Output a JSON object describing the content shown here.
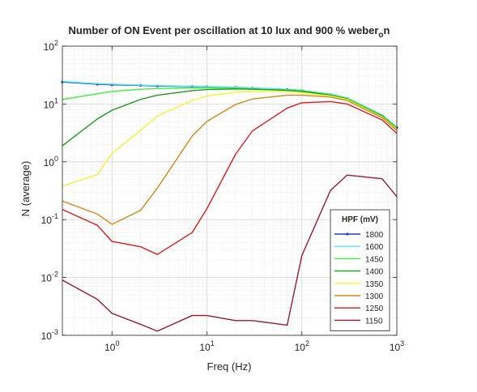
{
  "chart_data": {
    "type": "line",
    "title": "Number of ON Event per oscillation at 10 lux and 900 % weber",
    "title_subscript": "o",
    "title_tail": "n",
    "xlabel": "Freq (Hz)",
    "ylabel": "N (average)",
    "x_scale": "log",
    "y_scale": "log",
    "xlim": [
      0.3,
      1000
    ],
    "ylim": [
      0.001,
      100
    ],
    "x_ticks": [
      {
        "value": 1,
        "base": "10",
        "exp": "0"
      },
      {
        "value": 10,
        "base": "10",
        "exp": "1"
      },
      {
        "value": 100,
        "base": "10",
        "exp": "2"
      },
      {
        "value": 1000,
        "base": "10",
        "exp": "3"
      }
    ],
    "y_ticks": [
      {
        "value": 0.001,
        "base": "10",
        "exp": "-3"
      },
      {
        "value": 0.01,
        "base": "10",
        "exp": "-2"
      },
      {
        "value": 0.1,
        "base": "10",
        "exp": "-1"
      },
      {
        "value": 1,
        "base": "10",
        "exp": "0"
      },
      {
        "value": 10,
        "base": "10",
        "exp": "1"
      },
      {
        "value": 100,
        "base": "10",
        "exp": "2"
      }
    ],
    "grid": true,
    "minor_grid": true,
    "legend": {
      "title": "HPF (mV)",
      "placement": "bottom-right"
    },
    "series": [
      {
        "name": "1800",
        "color": "#1f3fbf",
        "markers": true,
        "x": [
          0.3,
          0.7,
          1,
          2,
          3,
          7,
          10,
          20,
          30,
          70,
          100,
          200,
          300,
          700,
          1000
        ],
        "y": [
          24,
          22,
          21.5,
          21,
          20.5,
          20,
          19.8,
          19.3,
          18.8,
          17.8,
          17,
          14.5,
          12.5,
          6.3,
          3.9
        ]
      },
      {
        "name": "1600",
        "color": "#4fe8ef",
        "markers": false,
        "x": [
          0.3,
          0.7,
          1,
          2,
          3,
          7,
          10,
          20,
          30,
          70,
          100,
          200,
          300,
          700,
          1000
        ],
        "y": [
          24.5,
          22.5,
          22,
          21.2,
          20.8,
          20.2,
          20,
          19.5,
          19,
          18,
          17.2,
          14.8,
          12.8,
          6.5,
          4.0
        ]
      },
      {
        "name": "1450",
        "color": "#3ff03f",
        "markers": false,
        "x": [
          0.3,
          0.7,
          1,
          2,
          3,
          7,
          10,
          20,
          30,
          70,
          100,
          200,
          300,
          700,
          1000
        ],
        "y": [
          12,
          15,
          16.5,
          18,
          18.5,
          19,
          19,
          18.8,
          18.3,
          17.5,
          17,
          14.5,
          12.5,
          6.3,
          3.9
        ]
      },
      {
        "name": "1400",
        "color": "#1f9a1f",
        "markers": false,
        "x": [
          0.3,
          0.7,
          1,
          2,
          3,
          7,
          10,
          20,
          30,
          70,
          100,
          200,
          300,
          700,
          1000
        ],
        "y": [
          1.9,
          5.5,
          7.8,
          12,
          14.2,
          17,
          17.8,
          18.2,
          18,
          17.2,
          16.5,
          14.2,
          12.2,
          6.2,
          3.8
        ]
      },
      {
        "name": "1350",
        "color": "#f5f532",
        "markers": false,
        "x": [
          0.3,
          0.7,
          1,
          2,
          3,
          7,
          10,
          20,
          30,
          70,
          100,
          200,
          300,
          700,
          1000
        ],
        "y": [
          0.38,
          0.6,
          1.4,
          3.5,
          6.2,
          11.5,
          13.8,
          16,
          16.5,
          16.2,
          15.5,
          13.8,
          12,
          6.0,
          3.7
        ]
      },
      {
        "name": "1300",
        "color": "#d4881a",
        "markers": false,
        "x": [
          0.3,
          0.7,
          1,
          2,
          3,
          7,
          10,
          20,
          30,
          70,
          100,
          200,
          300,
          700,
          1000
        ],
        "y": [
          0.21,
          0.125,
          0.083,
          0.145,
          0.35,
          2.8,
          5.0,
          9.8,
          12.2,
          14.2,
          14.2,
          13.2,
          11.5,
          5.8,
          3.5
        ]
      },
      {
        "name": "1250",
        "color": "#e01a1a",
        "markers": false,
        "x": [
          0.3,
          0.7,
          1,
          2,
          3,
          7,
          10,
          20,
          30,
          70,
          100,
          200,
          300,
          700,
          1000
        ],
        "y": [
          0.15,
          0.08,
          0.042,
          0.034,
          0.025,
          0.06,
          0.155,
          1.35,
          3.4,
          8.5,
          10.5,
          11,
          10,
          5.3,
          3.1
        ]
      },
      {
        "name": "1150",
        "color": "#9a1a30",
        "markers": false,
        "x": [
          0.3,
          0.7,
          1,
          2,
          3,
          7,
          10,
          20,
          30,
          70,
          100,
          200,
          300,
          700,
          1000
        ],
        "y": [
          0.009,
          0.0042,
          0.0024,
          0.00155,
          0.00118,
          0.0022,
          0.0022,
          0.0018,
          0.0018,
          0.0015,
          0.024,
          0.32,
          0.59,
          0.51,
          0.25
        ]
      }
    ]
  }
}
